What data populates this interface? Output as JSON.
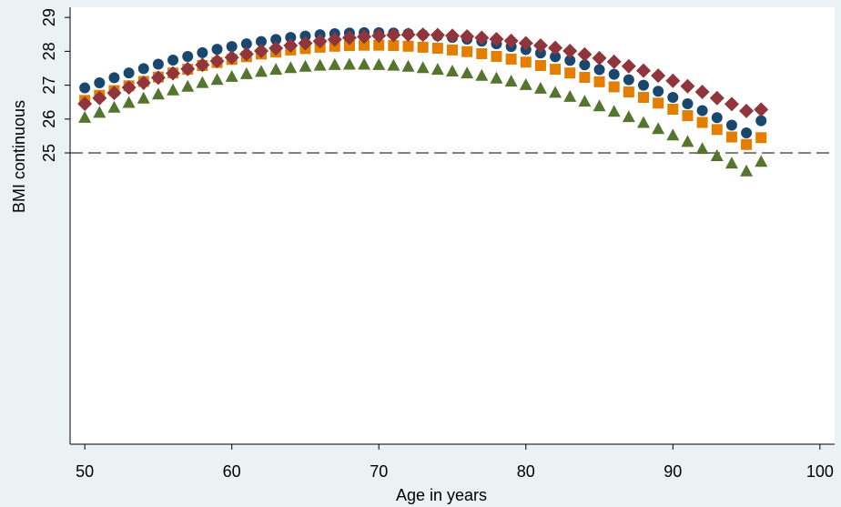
{
  "chart_data": {
    "type": "scatter",
    "xlabel": "Age in years",
    "ylabel": "BMI continuous",
    "xlim": [
      49,
      101
    ],
    "ylim": [
      16.4,
      29.3
    ],
    "xticks": [
      50,
      60,
      70,
      80,
      90,
      100
    ],
    "yticks": [
      25,
      26,
      27,
      28,
      29
    ],
    "grid": false,
    "legend": "none",
    "reference_line": {
      "y": 25,
      "style": "dashed"
    },
    "x": [
      50,
      51,
      52,
      53,
      54,
      55,
      56,
      57,
      58,
      59,
      60,
      61,
      62,
      63,
      64,
      65,
      66,
      67,
      68,
      69,
      70,
      71,
      72,
      73,
      74,
      75,
      76,
      77,
      78,
      79,
      80,
      81,
      82,
      83,
      84,
      85,
      86,
      87,
      88,
      89,
      90,
      91,
      92,
      93,
      94,
      95,
      96
    ],
    "series": [
      {
        "marker": "circle",
        "color": "#1a476f",
        "values": [
          26.92,
          27.07,
          27.22,
          27.36,
          27.49,
          27.62,
          27.74,
          27.85,
          27.96,
          28.06,
          28.14,
          28.22,
          28.29,
          28.35,
          28.41,
          28.45,
          28.49,
          28.52,
          28.54,
          28.55,
          28.55,
          28.54,
          28.52,
          28.49,
          28.46,
          28.41,
          28.36,
          28.3,
          28.22,
          28.14,
          28.05,
          27.95,
          27.84,
          27.73,
          27.6,
          27.46,
          27.32,
          27.16,
          27.0,
          26.82,
          26.64,
          26.45,
          26.25,
          26.04,
          25.82,
          25.59,
          25.95
        ]
      },
      {
        "marker": "diamond",
        "color": "#90353b",
        "values": [
          26.45,
          26.62,
          26.77,
          26.93,
          27.07,
          27.22,
          27.35,
          27.48,
          27.6,
          27.71,
          27.82,
          27.92,
          28.01,
          28.09,
          28.17,
          28.24,
          28.3,
          28.35,
          28.4,
          28.43,
          28.46,
          28.48,
          28.49,
          28.49,
          28.48,
          28.46,
          28.44,
          28.4,
          28.36,
          28.31,
          28.24,
          28.17,
          28.1,
          28.01,
          27.91,
          27.8,
          27.69,
          27.56,
          27.43,
          27.28,
          27.13,
          26.97,
          26.8,
          26.62,
          26.44,
          26.24,
          26.28
        ]
      },
      {
        "marker": "square",
        "color": "#e37e00",
        "values": [
          26.55,
          26.7,
          26.84,
          26.98,
          27.11,
          27.24,
          27.36,
          27.47,
          27.58,
          27.67,
          27.76,
          27.84,
          27.92,
          27.98,
          28.04,
          28.08,
          28.12,
          28.15,
          28.17,
          28.18,
          28.18,
          28.17,
          28.15,
          28.12,
          28.09,
          28.04,
          27.99,
          27.93,
          27.85,
          27.77,
          27.68,
          27.58,
          27.47,
          27.36,
          27.23,
          27.1,
          26.95,
          26.8,
          26.64,
          26.47,
          26.29,
          26.1,
          25.9,
          25.69,
          25.47,
          25.25,
          25.45
        ]
      },
      {
        "marker": "triangle",
        "color": "#55752f",
        "values": [
          26.05,
          26.2,
          26.35,
          26.49,
          26.62,
          26.74,
          26.86,
          26.97,
          27.08,
          27.17,
          27.26,
          27.34,
          27.41,
          27.47,
          27.52,
          27.56,
          27.59,
          27.61,
          27.62,
          27.62,
          27.61,
          27.59,
          27.56,
          27.52,
          27.47,
          27.42,
          27.36,
          27.29,
          27.21,
          27.12,
          27.02,
          26.91,
          26.79,
          26.67,
          26.53,
          26.39,
          26.23,
          26.07,
          25.9,
          25.72,
          25.53,
          25.34,
          25.13,
          24.92,
          24.7,
          24.47,
          24.75
        ]
      }
    ]
  }
}
